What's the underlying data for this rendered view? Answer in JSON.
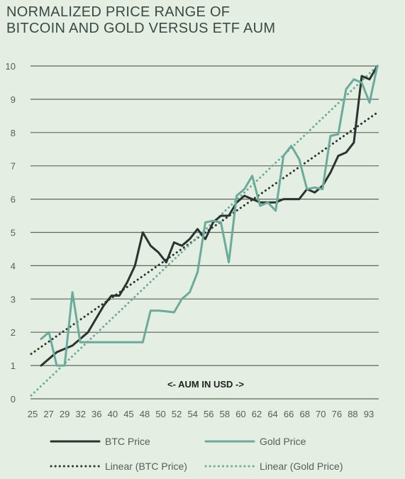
{
  "chart_data": {
    "type": "line",
    "title": "NORMALIZED PRICE RANGE OF",
    "subtitle": "BITCOIN AND GOLD VERSUS ETF AUM",
    "annotation": "<- AUM IN USD ->",
    "y_ticks": [
      0,
      1,
      2,
      3,
      4,
      5,
      6,
      7,
      8,
      9,
      10
    ],
    "ylim": [
      0,
      10
    ],
    "x_tick_labels": [
      "25",
      "27",
      "29",
      "32",
      "36",
      "40",
      "45",
      "48",
      "50",
      "52",
      "54",
      "56",
      "58",
      "60",
      "62",
      "64",
      "66",
      "68",
      "70",
      "76",
      "88",
      "93"
    ],
    "grid": true,
    "legend": "bottom",
    "series": [
      {
        "name": "BTC Price",
        "color": "#2b3330",
        "style": "solid",
        "values": [
          1.0,
          1.2,
          1.4,
          1.5,
          1.6,
          1.8,
          2.0,
          2.4,
          2.8,
          3.1,
          3.1,
          3.5,
          4.0,
          5.0,
          4.6,
          4.4,
          4.1,
          4.7,
          4.6,
          4.8,
          5.1,
          4.8,
          5.3,
          5.5,
          5.5,
          5.9,
          6.1,
          6.0,
          5.9,
          5.9,
          5.9,
          6.0,
          6.0,
          6.0,
          6.3,
          6.2,
          6.4,
          6.8,
          7.3,
          7.4,
          7.7,
          9.7,
          9.6,
          10.0
        ]
      },
      {
        "name": "Gold Price",
        "color": "#6aab9c",
        "style": "solid",
        "values": [
          1.8,
          2.0,
          1.0,
          1.0,
          3.2,
          1.7,
          1.7,
          1.7,
          1.7,
          1.7,
          1.7,
          1.7,
          1.7,
          1.7,
          2.65,
          2.65,
          2.63,
          2.6,
          3.0,
          3.2,
          3.8,
          5.3,
          5.35,
          5.3,
          4.1,
          6.1,
          6.3,
          6.7,
          5.8,
          5.9,
          5.65,
          7.3,
          7.6,
          7.2,
          6.3,
          6.35,
          6.3,
          7.9,
          7.95,
          9.3,
          9.6,
          9.5,
          8.9,
          10.0
        ]
      },
      {
        "name": "Linear (BTC Price)",
        "color": "#2b3330",
        "style": "dotted",
        "values": [
          1.35,
          8.6
        ]
      },
      {
        "name": "Linear (Gold Price)",
        "color": "#6aab9c",
        "style": "dotted",
        "values": [
          0.1,
          10.0
        ]
      }
    ]
  }
}
